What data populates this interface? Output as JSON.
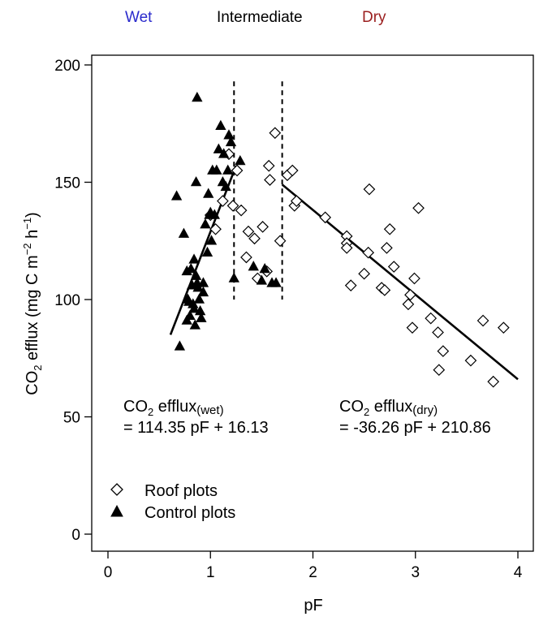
{
  "chart_data": {
    "type": "scatter",
    "xlabel": "pF",
    "ylabel": "CO",
    "ylabel_sub": "2",
    "ylabel_rest": " efflux (mg C m",
    "ylabel_sup1": "−2",
    "ylabel_h": " h",
    "ylabel_sup2": "−1",
    "ylabel_close": ")",
    "xlim": [
      0,
      4
    ],
    "ylim": [
      0,
      200
    ],
    "xticks": [
      "0",
      "1",
      "2",
      "3",
      "4"
    ],
    "yticks": [
      "0",
      "50",
      "100",
      "150",
      "200"
    ],
    "xtick_values": [
      0,
      1,
      2,
      3,
      4
    ],
    "ytick_values": [
      0,
      50,
      100,
      150,
      200
    ],
    "grid": false,
    "regime_labels": [
      {
        "text": "Wet",
        "color": "#2a2acc"
      },
      {
        "text": "Intermediate",
        "color": "#000000"
      },
      {
        "text": "Dry",
        "color": "#9b1f1f"
      }
    ],
    "thresholds": [
      {
        "x": 1.23,
        "y0": 100,
        "y1": 193
      },
      {
        "x": 1.7,
        "y0": 100,
        "y1": 193
      }
    ],
    "fit_lines": [
      {
        "name": "wet",
        "x": [
          0.61,
          1.25
        ],
        "y": [
          85,
          157
        ]
      },
      {
        "name": "dry",
        "x": [
          1.7,
          4.0
        ],
        "y": [
          149,
          66
        ]
      }
    ],
    "equations": [
      {
        "prefix": "CO",
        "sub": "2",
        "mid": " efflux",
        "sub2": "(wet)",
        "line2": "= 114.35 pF + 16.13"
      },
      {
        "prefix": "CO",
        "sub": "2",
        "mid": " efflux",
        "sub2": "(dry)",
        "line2": "= -36.26 pF + 210.86"
      }
    ],
    "legend": {
      "position": "bottom-left",
      "items": [
        "Roof plots",
        "Control plots"
      ]
    },
    "series": [
      {
        "name": "Roof plots",
        "marker": "diamond-open",
        "points": [
          [
            1.0,
            136
          ],
          [
            1.05,
            130
          ],
          [
            1.12,
            142
          ],
          [
            1.18,
            162
          ],
          [
            1.22,
            140
          ],
          [
            1.26,
            155
          ],
          [
            1.3,
            138
          ],
          [
            1.37,
            129
          ],
          [
            1.35,
            118
          ],
          [
            1.43,
            126
          ],
          [
            1.46,
            109
          ],
          [
            1.51,
            131
          ],
          [
            1.55,
            112
          ],
          [
            1.57,
            157
          ],
          [
            1.58,
            151
          ],
          [
            1.63,
            171
          ],
          [
            1.68,
            125
          ],
          [
            1.75,
            153
          ],
          [
            1.8,
            155
          ],
          [
            1.82,
            140
          ],
          [
            1.84,
            142
          ],
          [
            2.12,
            135
          ],
          [
            2.33,
            127
          ],
          [
            2.33,
            124
          ],
          [
            2.33,
            122
          ],
          [
            2.37,
            106
          ],
          [
            2.5,
            111
          ],
          [
            2.54,
            120
          ],
          [
            2.55,
            147
          ],
          [
            2.67,
            105
          ],
          [
            2.7,
            104
          ],
          [
            2.72,
            122
          ],
          [
            2.75,
            130
          ],
          [
            2.79,
            114
          ],
          [
            2.93,
            98
          ],
          [
            2.95,
            102
          ],
          [
            2.97,
            88
          ],
          [
            2.99,
            109
          ],
          [
            3.03,
            139
          ],
          [
            3.15,
            92
          ],
          [
            3.22,
            86
          ],
          [
            3.23,
            70
          ],
          [
            3.27,
            78
          ],
          [
            3.54,
            74
          ],
          [
            3.66,
            91
          ],
          [
            3.76,
            65
          ],
          [
            3.86,
            88
          ]
        ]
      },
      {
        "name": "Control plots",
        "marker": "triangle-filled",
        "points": [
          [
            0.67,
            144
          ],
          [
            0.7,
            80
          ],
          [
            0.74,
            128
          ],
          [
            0.77,
            112
          ],
          [
            0.77,
            91
          ],
          [
            0.78,
            100
          ],
          [
            0.79,
            99
          ],
          [
            0.8,
            93
          ],
          [
            0.81,
            113
          ],
          [
            0.82,
            106
          ],
          [
            0.83,
            98
          ],
          [
            0.84,
            117
          ],
          [
            0.84,
            96
          ],
          [
            0.85,
            89
          ],
          [
            0.86,
            150
          ],
          [
            0.86,
            110
          ],
          [
            0.87,
            186
          ],
          [
            0.87,
            107
          ],
          [
            0.88,
            105
          ],
          [
            0.89,
            100
          ],
          [
            0.9,
            95
          ],
          [
            0.91,
            92
          ],
          [
            0.93,
            107
          ],
          [
            0.93,
            103
          ],
          [
            0.95,
            132
          ],
          [
            0.97,
            120
          ],
          [
            0.98,
            145
          ],
          [
            0.99,
            136
          ],
          [
            1.0,
            137
          ],
          [
            1.01,
            125
          ],
          [
            1.02,
            155
          ],
          [
            1.04,
            136
          ],
          [
            1.06,
            155
          ],
          [
            1.08,
            164
          ],
          [
            1.1,
            174
          ],
          [
            1.12,
            150
          ],
          [
            1.13,
            162
          ],
          [
            1.15,
            148
          ],
          [
            1.17,
            155
          ],
          [
            1.18,
            170
          ],
          [
            1.2,
            167
          ],
          [
            1.23,
            109
          ],
          [
            1.29,
            159
          ],
          [
            1.42,
            114
          ],
          [
            1.5,
            108
          ],
          [
            1.53,
            113
          ],
          [
            1.6,
            107
          ],
          [
            1.64,
            107
          ]
        ]
      }
    ]
  }
}
